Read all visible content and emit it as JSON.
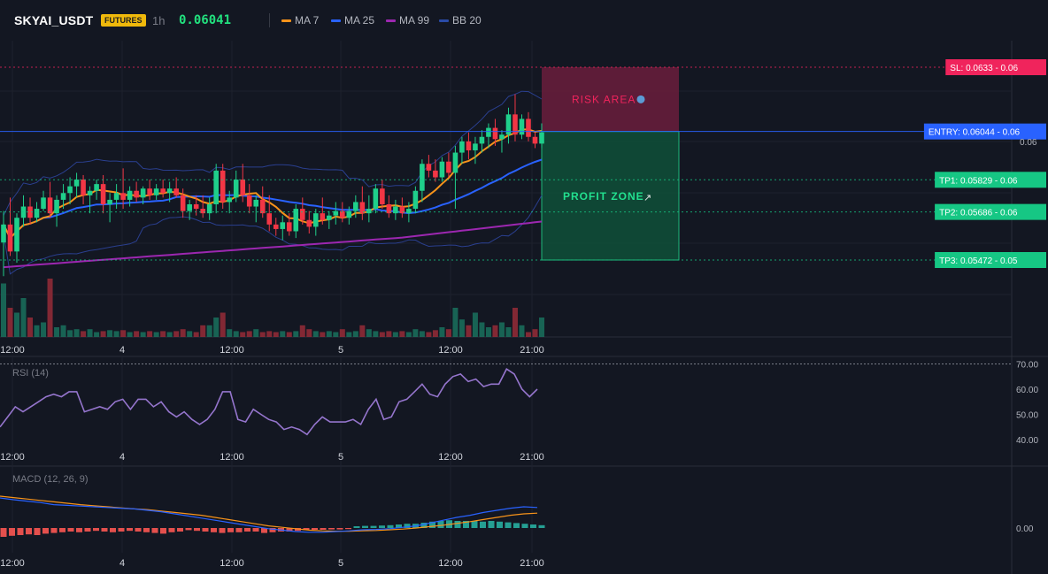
{
  "header": {
    "symbol": "SKYAI_USDT",
    "badge": "FUTURES",
    "timeframe": "1h",
    "price": "0.06041",
    "legend": [
      {
        "label": "MA 7",
        "color": "#f7931a"
      },
      {
        "label": "MA 25",
        "color": "#2962ff"
      },
      {
        "label": "MA 99",
        "color": "#9c27b0"
      },
      {
        "label": "BB 20",
        "color": "#2a4ba7"
      }
    ]
  },
  "colors": {
    "up": "#1fcf8b",
    "down": "#f23645",
    "entry": "#2962ff",
    "sl": "#f0245c",
    "tp": "#16c784"
  },
  "chart_data": [
    {
      "type": "candlestick",
      "x_tick_labels": [
        "12:00",
        "4",
        "12:00",
        "5",
        "12:00",
        "21:00"
      ],
      "price_axis_labels": [
        "0.06"
      ],
      "indicators": [
        "MA 7",
        "MA 25",
        "MA 99",
        "BB 20"
      ],
      "levels": [
        {
          "label": "SL: 0.0633",
          "value": 0.0633,
          "suffix": "0.06",
          "color": "#f0245c"
        },
        {
          "label": "ENTRY: 0.06044",
          "value": 0.06044,
          "suffix": "0.06",
          "color": "#2962ff"
        },
        {
          "label": "TP1: 0.05829",
          "value": 0.05829,
          "suffix": "0.06",
          "color": "#16c784"
        },
        {
          "label": "TP2: 0.05686",
          "value": 0.05686,
          "suffix": "0.06",
          "color": "#16c784"
        },
        {
          "label": "TP3: 0.05472",
          "value": 0.05472,
          "suffix": "0.05",
          "color": "#16c784"
        }
      ],
      "zones": {
        "risk_label": "RISK AREA",
        "profit_label": "PROFIT ZONE"
      },
      "candles": [
        {
          "o": 0.0555,
          "h": 0.0569,
          "l": 0.054,
          "c": 0.0563
        },
        {
          "o": 0.0563,
          "h": 0.0575,
          "l": 0.0549,
          "c": 0.0551
        },
        {
          "o": 0.0551,
          "h": 0.0568,
          "l": 0.0546,
          "c": 0.0566
        },
        {
          "o": 0.0566,
          "h": 0.0576,
          "l": 0.0562,
          "c": 0.0571
        },
        {
          "o": 0.0571,
          "h": 0.0575,
          "l": 0.0563,
          "c": 0.0566
        },
        {
          "o": 0.0566,
          "h": 0.0573,
          "l": 0.0564,
          "c": 0.057
        },
        {
          "o": 0.057,
          "h": 0.0578,
          "l": 0.0569,
          "c": 0.0575
        },
        {
          "o": 0.0575,
          "h": 0.0582,
          "l": 0.0566,
          "c": 0.0568
        },
        {
          "o": 0.0568,
          "h": 0.0576,
          "l": 0.0562,
          "c": 0.0574
        },
        {
          "o": 0.0574,
          "h": 0.0581,
          "l": 0.057,
          "c": 0.0577
        },
        {
          "o": 0.0577,
          "h": 0.0584,
          "l": 0.0572,
          "c": 0.058
        },
        {
          "o": 0.058,
          "h": 0.0586,
          "l": 0.0575,
          "c": 0.0583
        },
        {
          "o": 0.0583,
          "h": 0.0585,
          "l": 0.0572,
          "c": 0.0576
        },
        {
          "o": 0.0576,
          "h": 0.058,
          "l": 0.0568,
          "c": 0.0578
        },
        {
          "o": 0.0578,
          "h": 0.0583,
          "l": 0.0574,
          "c": 0.0581
        },
        {
          "o": 0.0581,
          "h": 0.0585,
          "l": 0.0568,
          "c": 0.0572
        },
        {
          "o": 0.0572,
          "h": 0.0577,
          "l": 0.0564,
          "c": 0.0574
        },
        {
          "o": 0.0574,
          "h": 0.0581,
          "l": 0.057,
          "c": 0.0577
        },
        {
          "o": 0.0577,
          "h": 0.0588,
          "l": 0.057,
          "c": 0.0574
        },
        {
          "o": 0.0574,
          "h": 0.058,
          "l": 0.0571,
          "c": 0.0578
        },
        {
          "o": 0.0578,
          "h": 0.0582,
          "l": 0.0573,
          "c": 0.0575
        },
        {
          "o": 0.0575,
          "h": 0.058,
          "l": 0.0572,
          "c": 0.0579
        },
        {
          "o": 0.0579,
          "h": 0.0583,
          "l": 0.0574,
          "c": 0.0576
        },
        {
          "o": 0.0576,
          "h": 0.0581,
          "l": 0.0574,
          "c": 0.0579
        },
        {
          "o": 0.0579,
          "h": 0.0583,
          "l": 0.0575,
          "c": 0.0577
        },
        {
          "o": 0.0577,
          "h": 0.0582,
          "l": 0.0573,
          "c": 0.0579
        },
        {
          "o": 0.0579,
          "h": 0.0584,
          "l": 0.0575,
          "c": 0.0576
        },
        {
          "o": 0.0576,
          "h": 0.0579,
          "l": 0.0566,
          "c": 0.0569
        },
        {
          "o": 0.0569,
          "h": 0.0574,
          "l": 0.0565,
          "c": 0.0572
        },
        {
          "o": 0.0572,
          "h": 0.0576,
          "l": 0.0567,
          "c": 0.057
        },
        {
          "o": 0.057,
          "h": 0.0576,
          "l": 0.0566,
          "c": 0.0568
        },
        {
          "o": 0.0568,
          "h": 0.0575,
          "l": 0.0565,
          "c": 0.0572
        },
        {
          "o": 0.0572,
          "h": 0.059,
          "l": 0.0568,
          "c": 0.0587
        },
        {
          "o": 0.0587,
          "h": 0.059,
          "l": 0.057,
          "c": 0.0573
        },
        {
          "o": 0.0573,
          "h": 0.0578,
          "l": 0.0568,
          "c": 0.0575
        },
        {
          "o": 0.0575,
          "h": 0.0587,
          "l": 0.0573,
          "c": 0.0583
        },
        {
          "o": 0.0583,
          "h": 0.059,
          "l": 0.0573,
          "c": 0.0576
        },
        {
          "o": 0.0576,
          "h": 0.0581,
          "l": 0.0568,
          "c": 0.0571
        },
        {
          "o": 0.0571,
          "h": 0.0576,
          "l": 0.0564,
          "c": 0.0574
        },
        {
          "o": 0.0574,
          "h": 0.058,
          "l": 0.0566,
          "c": 0.0568
        },
        {
          "o": 0.0568,
          "h": 0.0576,
          "l": 0.056,
          "c": 0.0563
        },
        {
          "o": 0.0563,
          "h": 0.0566,
          "l": 0.0558,
          "c": 0.0561
        },
        {
          "o": 0.0561,
          "h": 0.0567,
          "l": 0.0556,
          "c": 0.0564
        },
        {
          "o": 0.0564,
          "h": 0.0568,
          "l": 0.0558,
          "c": 0.056
        },
        {
          "o": 0.056,
          "h": 0.0572,
          "l": 0.0557,
          "c": 0.057
        },
        {
          "o": 0.057,
          "h": 0.0575,
          "l": 0.0563,
          "c": 0.0565
        },
        {
          "o": 0.0565,
          "h": 0.0569,
          "l": 0.0559,
          "c": 0.0562
        },
        {
          "o": 0.0562,
          "h": 0.057,
          "l": 0.0558,
          "c": 0.0568
        },
        {
          "o": 0.0568,
          "h": 0.0575,
          "l": 0.0563,
          "c": 0.0565
        },
        {
          "o": 0.0565,
          "h": 0.0569,
          "l": 0.0561,
          "c": 0.0567
        },
        {
          "o": 0.0567,
          "h": 0.0573,
          "l": 0.0563,
          "c": 0.0569
        },
        {
          "o": 0.0569,
          "h": 0.0573,
          "l": 0.0564,
          "c": 0.0566
        },
        {
          "o": 0.0566,
          "h": 0.0571,
          "l": 0.0563,
          "c": 0.0569
        },
        {
          "o": 0.0569,
          "h": 0.0576,
          "l": 0.0566,
          "c": 0.0573
        },
        {
          "o": 0.0573,
          "h": 0.058,
          "l": 0.0565,
          "c": 0.0568
        },
        {
          "o": 0.0568,
          "h": 0.0576,
          "l": 0.0564,
          "c": 0.057
        },
        {
          "o": 0.057,
          "h": 0.0581,
          "l": 0.0568,
          "c": 0.0579
        },
        {
          "o": 0.0579,
          "h": 0.0583,
          "l": 0.057,
          "c": 0.0572
        },
        {
          "o": 0.0572,
          "h": 0.0576,
          "l": 0.0566,
          "c": 0.0568
        },
        {
          "o": 0.0568,
          "h": 0.0574,
          "l": 0.0565,
          "c": 0.0571
        },
        {
          "o": 0.0571,
          "h": 0.0575,
          "l": 0.0566,
          "c": 0.0568
        },
        {
          "o": 0.0568,
          "h": 0.0573,
          "l": 0.0564,
          "c": 0.057
        },
        {
          "o": 0.057,
          "h": 0.058,
          "l": 0.0568,
          "c": 0.0578
        },
        {
          "o": 0.0578,
          "h": 0.0592,
          "l": 0.0573,
          "c": 0.059
        },
        {
          "o": 0.059,
          "h": 0.0594,
          "l": 0.0584,
          "c": 0.0587
        },
        {
          "o": 0.0587,
          "h": 0.0592,
          "l": 0.0582,
          "c": 0.0584
        },
        {
          "o": 0.0584,
          "h": 0.0593,
          "l": 0.0582,
          "c": 0.0591
        },
        {
          "o": 0.0591,
          "h": 0.0595,
          "l": 0.0584,
          "c": 0.0586
        },
        {
          "o": 0.0586,
          "h": 0.0598,
          "l": 0.057,
          "c": 0.0595
        },
        {
          "o": 0.0595,
          "h": 0.0602,
          "l": 0.059,
          "c": 0.06
        },
        {
          "o": 0.06,
          "h": 0.0604,
          "l": 0.0592,
          "c": 0.0596
        },
        {
          "o": 0.0596,
          "h": 0.0602,
          "l": 0.059,
          "c": 0.0599
        },
        {
          "o": 0.0599,
          "h": 0.0605,
          "l": 0.0595,
          "c": 0.0602
        },
        {
          "o": 0.0602,
          "h": 0.0608,
          "l": 0.0597,
          "c": 0.0606
        },
        {
          "o": 0.0606,
          "h": 0.061,
          "l": 0.0598,
          "c": 0.0601
        },
        {
          "o": 0.0601,
          "h": 0.0605,
          "l": 0.0595,
          "c": 0.0603
        },
        {
          "o": 0.0603,
          "h": 0.0615,
          "l": 0.0599,
          "c": 0.0612
        },
        {
          "o": 0.0612,
          "h": 0.0621,
          "l": 0.06,
          "c": 0.0603
        },
        {
          "o": 0.0603,
          "h": 0.0612,
          "l": 0.0601,
          "c": 0.061
        },
        {
          "o": 0.061,
          "h": 0.0613,
          "l": 0.06,
          "c": 0.0602
        },
        {
          "o": 0.0602,
          "h": 0.0604,
          "l": 0.0597,
          "c": 0.0599
        },
        {
          "o": 0.0599,
          "h": 0.0608,
          "l": 0.0597,
          "c": 0.0604
        }
      ],
      "volume": [
        0.55,
        0.3,
        0.25,
        0.4,
        0.2,
        0.12,
        0.15,
        0.6,
        0.1,
        0.12,
        0.07,
        0.08,
        0.06,
        0.08,
        0.05,
        0.06,
        0.07,
        0.06,
        0.07,
        0.05,
        0.06,
        0.05,
        0.06,
        0.05,
        0.06,
        0.05,
        0.06,
        0.08,
        0.06,
        0.05,
        0.12,
        0.12,
        0.2,
        0.25,
        0.08,
        0.06,
        0.05,
        0.06,
        0.08,
        0.05,
        0.06,
        0.05,
        0.06,
        0.05,
        0.06,
        0.12,
        0.08,
        0.06,
        0.05,
        0.06,
        0.05,
        0.08,
        0.05,
        0.06,
        0.12,
        0.08,
        0.06,
        0.05,
        0.06,
        0.05,
        0.06,
        0.05,
        0.08,
        0.06,
        0.05,
        0.07,
        0.1,
        0.08,
        0.3,
        0.18,
        0.12,
        0.25,
        0.15,
        0.1,
        0.12,
        0.15,
        0.1,
        0.3,
        0.12,
        0.05,
        0.08,
        0.2
      ]
    },
    {
      "type": "line",
      "title": "RSI (14)",
      "y_tick_labels": [
        "70.00",
        "60.00",
        "50.00",
        "40.00"
      ],
      "ylim": [
        36,
        72
      ],
      "values": [
        45,
        49,
        53,
        51,
        53,
        55,
        57,
        58,
        57,
        59,
        59,
        51,
        52,
        53,
        52,
        55,
        56,
        52,
        56,
        56,
        53,
        55,
        51,
        49,
        51,
        48,
        46,
        48,
        52,
        59,
        59,
        48,
        47,
        52,
        50,
        48,
        47,
        44,
        45,
        44,
        42,
        46,
        49,
        47,
        47,
        47,
        48,
        46,
        52,
        56,
        48,
        49,
        55,
        56,
        59,
        62,
        58,
        57,
        62,
        65,
        66,
        63,
        64,
        61,
        62,
        62,
        68,
        66,
        60,
        57,
        60
      ]
    },
    {
      "type": "bar",
      "title": "MACD (12, 26, 9)",
      "y_tick_labels": [
        "0.00"
      ],
      "histogram": [
        -0.25,
        -0.22,
        -0.2,
        -0.18,
        -0.2,
        -0.16,
        -0.14,
        -0.12,
        -0.1,
        -0.12,
        -0.1,
        -0.08,
        -0.1,
        -0.12,
        -0.1,
        -0.08,
        -0.1,
        -0.12,
        -0.14,
        -0.16,
        -0.12,
        -0.1,
        -0.06,
        -0.08,
        -0.1,
        -0.12,
        -0.14,
        -0.12,
        -0.12,
        -0.1,
        -0.1,
        -0.14,
        -0.12,
        -0.1,
        -0.1,
        -0.08,
        -0.06,
        -0.05,
        -0.05,
        -0.04,
        -0.04,
        -0.03,
        0.05,
        0.06,
        0.06,
        0.07,
        0.08,
        0.1,
        0.12,
        0.12,
        0.15,
        0.18,
        0.2,
        0.22,
        0.2,
        0.2,
        0.2,
        0.18,
        0.2,
        0.18,
        0.16,
        0.14,
        0.12,
        0.1,
        0.08
      ],
      "macd": [
        0.85,
        0.8,
        0.76,
        0.72,
        0.66,
        0.64,
        0.62,
        0.6,
        0.58,
        0.56,
        0.54,
        0.5,
        0.46,
        0.4,
        0.34,
        0.28,
        0.22,
        0.16,
        0.1,
        0.04,
        -0.02,
        -0.06,
        -0.1,
        -0.12,
        -0.12,
        -0.1,
        -0.08,
        -0.05,
        -0.04,
        -0.02,
        0.02,
        0.06,
        0.14,
        0.22,
        0.3,
        0.36,
        0.44,
        0.5,
        0.56,
        0.6,
        0.58
      ],
      "signal": [
        0.9,
        0.86,
        0.82,
        0.78,
        0.74,
        0.7,
        0.66,
        0.63,
        0.6,
        0.57,
        0.54,
        0.52,
        0.48,
        0.44,
        0.4,
        0.36,
        0.3,
        0.24,
        0.18,
        0.12,
        0.06,
        0.02,
        -0.02,
        -0.06,
        -0.08,
        -0.09,
        -0.09,
        -0.08,
        -0.07,
        -0.05,
        -0.03,
        0.0,
        0.04,
        0.08,
        0.13,
        0.18,
        0.24,
        0.3,
        0.36,
        0.4,
        0.42
      ]
    }
  ]
}
